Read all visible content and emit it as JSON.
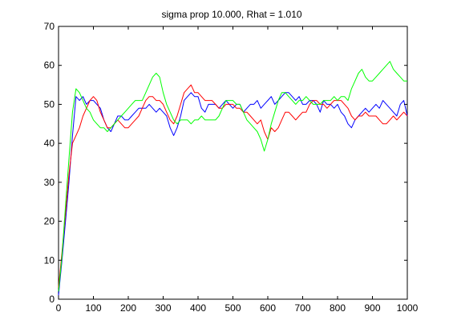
{
  "chart_data": {
    "type": "line",
    "title": "sigma prop 10.000, Rhat = 1.010",
    "xlabel": "",
    "ylabel": "",
    "xlim": [
      0,
      1000
    ],
    "ylim": [
      0,
      70
    ],
    "x_ticks": [
      0,
      100,
      200,
      300,
      400,
      500,
      600,
      700,
      800,
      900,
      1000
    ],
    "y_ticks": [
      0,
      10,
      20,
      30,
      40,
      50,
      60,
      70
    ],
    "x_tick_labels": [
      "0",
      "100",
      "200",
      "300",
      "400",
      "500",
      "600",
      "700",
      "800",
      "900",
      "1000"
    ],
    "y_tick_labels": [
      "0",
      "10",
      "20",
      "30",
      "40",
      "50",
      "60",
      "70"
    ],
    "grid": false,
    "legend": "none",
    "series": [
      {
        "color": "#0000ff",
        "x": [
          0,
          10,
          20,
          30,
          40,
          50,
          60,
          70,
          80,
          90,
          100,
          110,
          120,
          130,
          140,
          150,
          160,
          170,
          180,
          190,
          200,
          210,
          220,
          230,
          240,
          250,
          260,
          270,
          280,
          290,
          300,
          310,
          320,
          330,
          340,
          350,
          360,
          370,
          380,
          390,
          400,
          410,
          420,
          430,
          440,
          450,
          460,
          470,
          480,
          490,
          500,
          510,
          520,
          530,
          540,
          550,
          560,
          570,
          580,
          590,
          600,
          610,
          620,
          630,
          640,
          650,
          660,
          670,
          680,
          690,
          700,
          710,
          720,
          730,
          740,
          750,
          760,
          770,
          780,
          790,
          800,
          810,
          820,
          830,
          840,
          850,
          860,
          870,
          880,
          890,
          900,
          910,
          920,
          930,
          940,
          950,
          960,
          970,
          980,
          990,
          1000
        ],
        "values": [
          1,
          10,
          20,
          30,
          42,
          52,
          51,
          52,
          50,
          51,
          51,
          50,
          49,
          46,
          44,
          43,
          45,
          47,
          47,
          46,
          46,
          47,
          48,
          49,
          49,
          49,
          50,
          49,
          48,
          49,
          48,
          47,
          44,
          42,
          44,
          47,
          51,
          52,
          53,
          52,
          52,
          49,
          48,
          50,
          50,
          50,
          49,
          50,
          51,
          50,
          49,
          50,
          50,
          48,
          49,
          50,
          50,
          51,
          49,
          50,
          51,
          52,
          50,
          51,
          52,
          53,
          53,
          52,
          51,
          52,
          50,
          50,
          51,
          51,
          50,
          48,
          51,
          50,
          50,
          49,
          50,
          48,
          47,
          45,
          44,
          46,
          47,
          48,
          49,
          48,
          49,
          50,
          49,
          51,
          50,
          49,
          48,
          47,
          50,
          51,
          47
        ]
      },
      {
        "color": "#ff0000",
        "x": [
          0,
          10,
          20,
          30,
          40,
          50,
          60,
          70,
          80,
          90,
          100,
          110,
          120,
          130,
          140,
          150,
          160,
          170,
          180,
          190,
          200,
          210,
          220,
          230,
          240,
          250,
          260,
          270,
          280,
          290,
          300,
          310,
          320,
          330,
          340,
          350,
          360,
          370,
          380,
          390,
          400,
          410,
          420,
          430,
          440,
          450,
          460,
          470,
          480,
          490,
          500,
          510,
          520,
          530,
          540,
          550,
          560,
          570,
          580,
          590,
          600,
          610,
          620,
          630,
          640,
          650,
          660,
          670,
          680,
          690,
          700,
          710,
          720,
          730,
          740,
          750,
          760,
          770,
          780,
          790,
          800,
          810,
          820,
          830,
          840,
          850,
          860,
          870,
          880,
          890,
          900,
          910,
          920,
          930,
          940,
          950,
          960,
          970,
          980,
          990,
          1000
        ],
        "values": [
          3,
          12,
          22,
          32,
          40,
          42,
          44,
          47,
          49,
          51,
          52,
          51,
          48,
          46,
          44,
          44,
          45,
          46,
          45,
          44,
          44,
          45,
          46,
          47,
          49,
          51,
          52,
          52,
          51,
          51,
          50,
          48,
          46,
          45,
          47,
          50,
          53,
          54,
          55,
          53,
          53,
          52,
          51,
          51,
          51,
          50,
          49,
          49,
          50,
          50,
          50,
          49,
          49,
          48,
          48,
          47,
          46,
          45,
          46,
          43,
          41,
          44,
          43,
          44,
          46,
          48,
          48,
          47,
          46,
          47,
          48,
          48,
          50,
          51,
          51,
          50,
          50,
          49,
          50,
          51,
          51,
          51,
          50,
          49,
          47,
          46,
          47,
          47,
          48,
          47,
          47,
          47,
          46,
          45,
          45,
          46,
          47,
          46,
          47,
          48,
          47
        ]
      },
      {
        "color": "#00ff00",
        "x": [
          0,
          10,
          20,
          30,
          40,
          50,
          60,
          70,
          80,
          90,
          100,
          110,
          120,
          130,
          140,
          150,
          160,
          170,
          180,
          190,
          200,
          210,
          220,
          230,
          240,
          250,
          260,
          270,
          280,
          290,
          300,
          310,
          320,
          330,
          340,
          350,
          360,
          370,
          380,
          390,
          400,
          410,
          420,
          430,
          440,
          450,
          460,
          470,
          480,
          490,
          500,
          510,
          520,
          530,
          540,
          550,
          560,
          570,
          580,
          590,
          600,
          610,
          620,
          630,
          640,
          650,
          660,
          670,
          680,
          690,
          700,
          710,
          720,
          730,
          740,
          750,
          760,
          770,
          780,
          790,
          800,
          810,
          820,
          830,
          840,
          850,
          860,
          870,
          880,
          890,
          900,
          910,
          920,
          930,
          940,
          950,
          960,
          970,
          980,
          990,
          1000
        ],
        "values": [
          2,
          11,
          24,
          36,
          48,
          54,
          53,
          51,
          49,
          48,
          46,
          45,
          44,
          44,
          43,
          44,
          45,
          46,
          47,
          48,
          49,
          50,
          51,
          51,
          51,
          53,
          55,
          57,
          58,
          57,
          53,
          50,
          48,
          46,
          45,
          46,
          46,
          46,
          45,
          46,
          46,
          47,
          46,
          46,
          46,
          46,
          47,
          49,
          51,
          51,
          51,
          50,
          50,
          48,
          46,
          45,
          44,
          43,
          41,
          38,
          41,
          45,
          48,
          51,
          53,
          53,
          52,
          51,
          50,
          51,
          51,
          52,
          51,
          50,
          50,
          50,
          51,
          51,
          51,
          52,
          51,
          52,
          52,
          51,
          54,
          56,
          58,
          59,
          57,
          56,
          56,
          57,
          58,
          59,
          60,
          61,
          59,
          58,
          57,
          56,
          56
        ]
      }
    ]
  }
}
